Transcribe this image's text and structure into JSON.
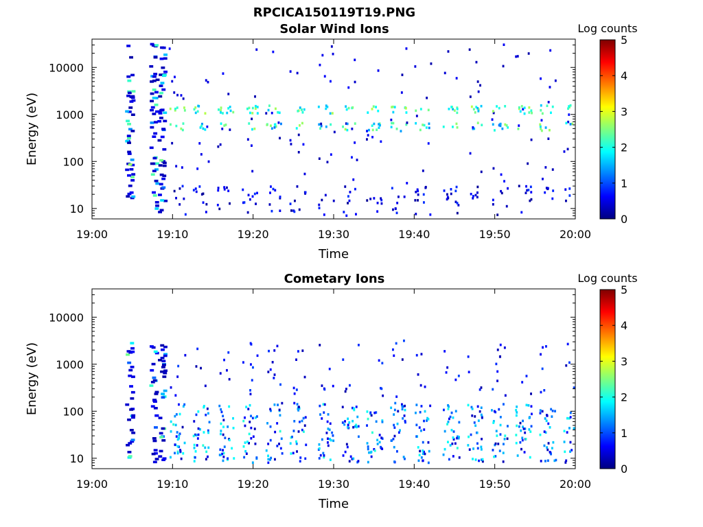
{
  "figure": {
    "filename": "RPCICA150119T19.PNG"
  },
  "colors": {
    "colormap": [
      "#00007f",
      "#0000ff",
      "#007fff",
      "#00ffff",
      "#7fff7f",
      "#ffff00",
      "#ff7f00",
      "#ff0000",
      "#7f0000"
    ]
  },
  "chart_data": [
    {
      "type": "heatmap",
      "title": "Solar Wind Ions",
      "xlabel": "Time",
      "ylabel": "Energy (eV)",
      "x_ticks": [
        "19:00",
        "19:10",
        "19:20",
        "19:30",
        "19:40",
        "19:50",
        "20:00"
      ],
      "y_ticks": [
        "10",
        "100",
        "1000",
        "10000"
      ],
      "y_scale": "log",
      "xlim": [
        "19:00",
        "20:00"
      ],
      "ylim": [
        6,
        40000
      ],
      "colorbar": {
        "label": "Log counts",
        "ticks": [
          "0",
          "1",
          "2",
          "3",
          "4",
          "5"
        ],
        "range": [
          0,
          5
        ]
      },
      "grid": false,
      "features": {
        "initial_bursts_min": [
          4.5,
          7.5,
          8.5
        ],
        "sweep_min": [
          10.5,
          13.5,
          16.5,
          19.5,
          22.5,
          25.5,
          29,
          32,
          35,
          38,
          41,
          44.5,
          47.5,
          50.5,
          53.5,
          56.5,
          59.5
        ],
        "peak_energies_eV": [
          1300,
          550
        ],
        "low_energy_range_eV": [
          7,
          30
        ]
      }
    },
    {
      "type": "heatmap",
      "title": "Cometary Ions",
      "xlabel": "Time",
      "ylabel": "Energy (eV)",
      "x_ticks": [
        "19:00",
        "19:10",
        "19:20",
        "19:30",
        "19:40",
        "19:50",
        "20:00"
      ],
      "y_ticks": [
        "10",
        "100",
        "1000",
        "10000"
      ],
      "y_scale": "log",
      "xlim": [
        "19:00",
        "20:00"
      ],
      "ylim": [
        6,
        40000
      ],
      "colorbar": {
        "label": "Log counts",
        "ticks": [
          "0",
          "1",
          "2",
          "3",
          "4",
          "5"
        ],
        "range": [
          0,
          5
        ]
      },
      "grid": false,
      "features": {
        "initial_bursts_min": [
          4.5,
          7.5,
          8.5
        ],
        "sweep_min": [
          10.5,
          13.5,
          16.5,
          19.5,
          22.5,
          25.5,
          29,
          32,
          35,
          38,
          41,
          44.5,
          47.5,
          50.5,
          53.5,
          56.5,
          59.5
        ],
        "band_energy_range_eV": [
          8,
          150
        ]
      }
    }
  ]
}
